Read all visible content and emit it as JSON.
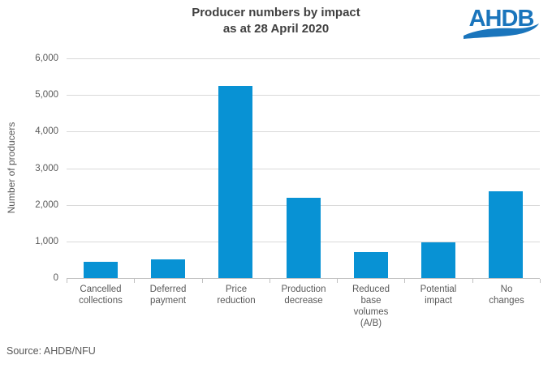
{
  "header": {
    "title_line1": "Producer numbers by impact",
    "title_line2": "as at 28 April 2020",
    "logo_text": "AHDB"
  },
  "footer": {
    "source": "Source: AHDB/NFU"
  },
  "colors": {
    "bar": "#0892D4",
    "gridline": "#D9D9D9",
    "axis_line": "#C0C0C0",
    "title_text": "#404040",
    "axis_text": "#595959",
    "logo_blue": "#1A75BC"
  },
  "chart_data": {
    "type": "bar",
    "title": "Producer numbers by impact as at 28 April 2020",
    "categories": [
      "Cancelled collections",
      "Deferred payment",
      "Price reduction",
      "Production decrease",
      "Reduced base volumes (A/B)",
      "Potential impact",
      "No changes"
    ],
    "categories_wrapped": [
      "Cancelled\ncollections",
      "Deferred\npayment",
      "Price\nreduction",
      "Production\ndecrease",
      "Reduced\nbase\nvolumes\n(A/B)",
      "Potential\nimpact",
      "No\nchanges"
    ],
    "values": [
      450,
      510,
      5250,
      2190,
      700,
      970,
      2370
    ],
    "xlabel": "",
    "ylabel": "Number of producers",
    "ylim": [
      0,
      6000
    ],
    "ytick_step": 1000,
    "ytick_labels": [
      "0",
      "1,000",
      "2,000",
      "3,000",
      "4,000",
      "5,000",
      "6,000"
    ],
    "grid": "horizontal",
    "legend_position": "none",
    "source": "AHDB/NFU"
  }
}
